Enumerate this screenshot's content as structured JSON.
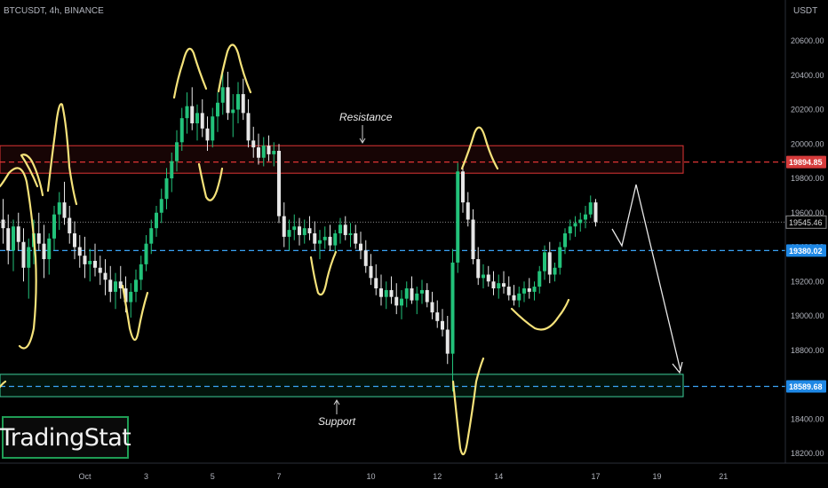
{
  "chart_data": {
    "type": "candlestick",
    "title": "BTCUSDT, 4h, BINANCE",
    "currency": "USDT",
    "ylim": [
      18150,
      20750
    ],
    "y_ticks": [
      20600,
      20400,
      20200,
      20000,
      19800,
      19600,
      19400,
      19200,
      19000,
      18800,
      18600,
      18400,
      18200
    ],
    "y_tick_labels": [
      "20600.00",
      "20400.00",
      "20200.00",
      "20000.00",
      "19800.00",
      "19600.00",
      "19400.00",
      "19200.00",
      "19000.00",
      "18800.00",
      "18600.00",
      "18400.00",
      "18200.00"
    ],
    "x_ticks": [
      {
        "label": "Oct",
        "bar": 16
      },
      {
        "label": "3",
        "bar": 28
      },
      {
        "label": "5",
        "bar": 41
      },
      {
        "label": "7",
        "bar": 54
      },
      {
        "label": "10",
        "bar": 72
      },
      {
        "label": "12",
        "bar": 85
      },
      {
        "label": "14",
        "bar": 97
      },
      {
        "label": "17",
        "bar": 116
      },
      {
        "label": "19",
        "bar": 128
      },
      {
        "label": "21",
        "bar": 141
      }
    ],
    "candles": [
      [
        19560,
        19680,
        19420,
        19510
      ],
      [
        19510,
        19590,
        19300,
        19380
      ],
      [
        19380,
        19560,
        19260,
        19520
      ],
      [
        19520,
        19600,
        19380,
        19430
      ],
      [
        19430,
        19510,
        19200,
        19280
      ],
      [
        19280,
        19450,
        19100,
        19400
      ],
      [
        19400,
        19560,
        19300,
        19480
      ],
      [
        19480,
        19600,
        19380,
        19420
      ],
      [
        19420,
        19530,
        19220,
        19330
      ],
      [
        19330,
        19480,
        19240,
        19450
      ],
      [
        19450,
        19640,
        19380,
        19590
      ],
      [
        19590,
        19720,
        19500,
        19660
      ],
      [
        19660,
        19780,
        19530,
        19570
      ],
      [
        19570,
        19640,
        19420,
        19480
      ],
      [
        19480,
        19550,
        19330,
        19400
      ],
      [
        19400,
        19470,
        19280,
        19350
      ],
      [
        19350,
        19460,
        19220,
        19300
      ],
      [
        19300,
        19390,
        19200,
        19320
      ],
      [
        19320,
        19420,
        19230,
        19280
      ],
      [
        19280,
        19350,
        19180,
        19250
      ],
      [
        19250,
        19330,
        19120,
        19210
      ],
      [
        19210,
        19290,
        19080,
        19140
      ],
      [
        19140,
        19250,
        19040,
        19200
      ],
      [
        19200,
        19290,
        19100,
        19160
      ],
      [
        19160,
        19230,
        19020,
        19080
      ],
      [
        19080,
        19190,
        18990,
        19140
      ],
      [
        19140,
        19270,
        19080,
        19210
      ],
      [
        19210,
        19350,
        19150,
        19300
      ],
      [
        19300,
        19470,
        19260,
        19420
      ],
      [
        19420,
        19560,
        19360,
        19510
      ],
      [
        19510,
        19640,
        19460,
        19600
      ],
      [
        19600,
        19740,
        19540,
        19680
      ],
      [
        19680,
        19860,
        19620,
        19800
      ],
      [
        19800,
        19950,
        19720,
        19900
      ],
      [
        19900,
        20080,
        19840,
        20010
      ],
      [
        20010,
        20210,
        19960,
        20150
      ],
      [
        20150,
        20300,
        20060,
        20220
      ],
      [
        20220,
        20330,
        20080,
        20120
      ],
      [
        20120,
        20230,
        20020,
        20180
      ],
      [
        20180,
        20260,
        20040,
        20090
      ],
      [
        20090,
        20160,
        19960,
        20020
      ],
      [
        20020,
        20210,
        19980,
        20160
      ],
      [
        20160,
        20300,
        20070,
        20240
      ],
      [
        20240,
        20410,
        20170,
        20330
      ],
      [
        20330,
        20420,
        20140,
        20180
      ],
      [
        20180,
        20290,
        20040,
        20200
      ],
      [
        20200,
        20360,
        20120,
        20290
      ],
      [
        20290,
        20380,
        20140,
        20180
      ],
      [
        20180,
        20260,
        19980,
        20020
      ],
      [
        20020,
        20100,
        19920,
        19980
      ],
      [
        19980,
        20060,
        19880,
        19920
      ],
      [
        19920,
        20040,
        19870,
        19990
      ],
      [
        19990,
        20050,
        19900,
        19940
      ],
      [
        19940,
        20010,
        19870,
        19960
      ],
      [
        19960,
        20000,
        19540,
        19580
      ],
      [
        19580,
        19660,
        19400,
        19460
      ],
      [
        19460,
        19560,
        19380,
        19500
      ],
      [
        19500,
        19590,
        19440,
        19520
      ],
      [
        19520,
        19570,
        19410,
        19470
      ],
      [
        19470,
        19560,
        19420,
        19510
      ],
      [
        19510,
        19580,
        19440,
        19480
      ],
      [
        19480,
        19550,
        19380,
        19420
      ],
      [
        19420,
        19500,
        19330,
        19440
      ],
      [
        19440,
        19520,
        19390,
        19460
      ],
      [
        19460,
        19530,
        19380,
        19410
      ],
      [
        19410,
        19500,
        19350,
        19480
      ],
      [
        19480,
        19570,
        19420,
        19530
      ],
      [
        19530,
        19580,
        19440,
        19470
      ],
      [
        19470,
        19540,
        19400,
        19480
      ],
      [
        19480,
        19530,
        19390,
        19420
      ],
      [
        19420,
        19490,
        19330,
        19380
      ],
      [
        19380,
        19440,
        19250,
        19290
      ],
      [
        19290,
        19360,
        19180,
        19220
      ],
      [
        19220,
        19300,
        19120,
        19160
      ],
      [
        19160,
        19240,
        19060,
        19110
      ],
      [
        19110,
        19200,
        19040,
        19150
      ],
      [
        19150,
        19230,
        19070,
        19110
      ],
      [
        19110,
        19190,
        19010,
        19060
      ],
      [
        19060,
        19150,
        18980,
        19100
      ],
      [
        19100,
        19200,
        19050,
        19160
      ],
      [
        19160,
        19230,
        19070,
        19090
      ],
      [
        19090,
        19170,
        19010,
        19130
      ],
      [
        19130,
        19210,
        19070,
        19150
      ],
      [
        19150,
        19190,
        19050,
        19080
      ],
      [
        19080,
        19140,
        18980,
        19020
      ],
      [
        19020,
        19090,
        18930,
        18970
      ],
      [
        18970,
        19040,
        18880,
        18920
      ],
      [
        18920,
        19000,
        18720,
        18780
      ],
      [
        18780,
        19390,
        18560,
        19310
      ],
      [
        19310,
        19890,
        19250,
        19840
      ],
      [
        19840,
        19880,
        19600,
        19660
      ],
      [
        19660,
        19720,
        19520,
        19560
      ],
      [
        19560,
        19620,
        19300,
        19330
      ],
      [
        19330,
        19400,
        19180,
        19220
      ],
      [
        19220,
        19300,
        19160,
        19240
      ],
      [
        19240,
        19290,
        19170,
        19200
      ],
      [
        19200,
        19260,
        19120,
        19160
      ],
      [
        19160,
        19240,
        19100,
        19190
      ],
      [
        19190,
        19260,
        19130,
        19170
      ],
      [
        19170,
        19230,
        19090,
        19120
      ],
      [
        19120,
        19180,
        19060,
        19090
      ],
      [
        19090,
        19170,
        19050,
        19130
      ],
      [
        19130,
        19200,
        19080,
        19160
      ],
      [
        19160,
        19220,
        19100,
        19140
      ],
      [
        19140,
        19200,
        19090,
        19170
      ],
      [
        19170,
        19290,
        19130,
        19260
      ],
      [
        19260,
        19410,
        19210,
        19370
      ],
      [
        19370,
        19430,
        19190,
        19240
      ],
      [
        19240,
        19310,
        19200,
        19280
      ],
      [
        19280,
        19430,
        19240,
        19400
      ],
      [
        19400,
        19510,
        19360,
        19480
      ],
      [
        19480,
        19560,
        19440,
        19520
      ],
      [
        19520,
        19580,
        19460,
        19540
      ],
      [
        19540,
        19600,
        19490,
        19560
      ],
      [
        19560,
        19640,
        19510,
        19590
      ],
      [
        19590,
        19700,
        19570,
        19660
      ],
      [
        19660,
        19680,
        19520,
        19545
      ]
    ],
    "levels": {
      "resistance_price": 19894.85,
      "resistance_label": "19894.85",
      "current_price": 19545.46,
      "current_label": "19545.46",
      "mid_price": 19380.02,
      "mid_label": "19380.02",
      "support_price": 18589.68,
      "support_label": "18589.68"
    },
    "zones": [
      {
        "name": "Resistance",
        "top": 19990,
        "bottom": 19830
      },
      {
        "name": "Support",
        "top": 18660,
        "bottom": 18530
      }
    ],
    "annotations": {
      "resistance_text": "Resistance",
      "support_text": "Support"
    },
    "colors": {
      "up": "#22c27a",
      "down": "#e6e6e6",
      "resistance": "#e03535",
      "support": "#3aa3f5",
      "drawing": "#f5e27a",
      "arrow": "#e8e8e8"
    }
  },
  "brand": {
    "logo_text": "TradingStat"
  }
}
